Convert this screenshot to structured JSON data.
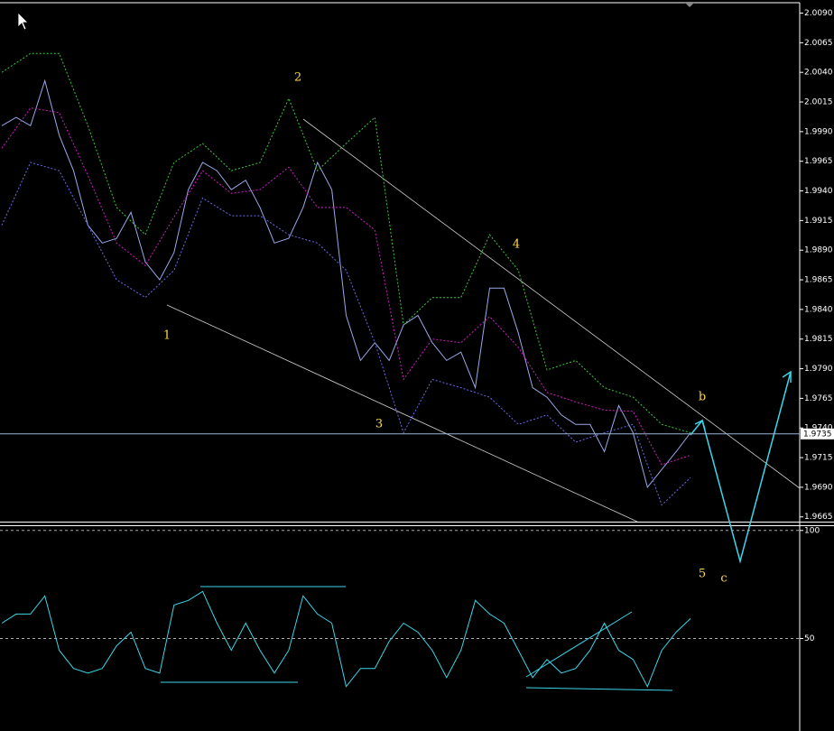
{
  "chart_data": [
    {
      "type": "line",
      "ylim": [
        1.9661,
        2.0098
      ],
      "yticks": [
        {
          "value": 2.009,
          "label": "2.0090"
        },
        2.0065,
        {
          "value": 2.004,
          "label": "2.0040"
        },
        2.0015,
        {
          "value": 1.999,
          "label": "1.9990"
        },
        1.9965,
        {
          "value": 1.994,
          "label": "1.9940"
        },
        1.9915,
        {
          "value": 1.989,
          "label": "1.9890"
        },
        1.9865,
        {
          "value": 1.984,
          "label": "1.9840"
        },
        1.9815,
        {
          "value": 1.979,
          "label": "1.9790"
        },
        1.9765,
        {
          "value": 1.974,
          "label": "1.9740"
        },
        1.9715,
        {
          "value": 1.969,
          "label": "1.9690"
        },
        1.9665
      ],
      "grid": false,
      "current_price": 1.9735,
      "annotations": [
        "1",
        "2",
        "3",
        "4",
        "5",
        "b",
        "c"
      ],
      "series": [
        {
          "color": "#9aa8e8",
          "values": [
            1.9995,
            2.0002,
            1.9995,
            2.0033,
            1.9987,
            1.9957,
            1.9911,
            1.9896,
            1.99,
            1.9922,
            1.988,
            1.9865,
            1.9888,
            1.9941,
            1.9964,
            1.9957,
            1.9941,
            1.9949,
            1.9926,
            1.9896,
            1.99,
            1.9926,
            1.9964,
            1.9941,
            1.9835,
            1.9797,
            1.9812,
            1.9797,
            1.9827,
            1.9835,
            1.9812,
            1.9797,
            1.9804,
            1.9774,
            1.9858,
            1.9858,
            1.982,
            1.9774,
            1.9766,
            1.9751,
            1.9743,
            1.9743,
            1.972,
            1.9759,
            1.9736,
            1.969,
            1.9705,
            1.972,
            1.9736
          ]
        },
        {
          "color": "#3cc83c",
          "dashed": true,
          "values": [
            2.004,
            2.0056,
            2.0056,
            1.9995,
            1.9926,
            1.9903,
            1.9964,
            1.998,
            1.9957,
            1.9964,
            2.0018,
            1.9957,
            1.998,
            2.0002,
            1.9827,
            1.985,
            1.985,
            1.9903,
            1.9873,
            1.9789,
            1.9797,
            1.9774,
            1.9766,
            1.9743,
            1.9736
          ]
        },
        {
          "color": "#d01cc8",
          "dashed": true,
          "values": [
            1.9976,
            2.001,
            2.0006,
            1.9953,
            1.9896,
            1.9877,
            1.9918,
            1.9957,
            1.9938,
            1.9941,
            1.996,
            1.9926,
            1.9926,
            1.9907,
            1.9781,
            1.9815,
            1.9812,
            1.9834,
            1.9808,
            1.977,
            1.9762,
            1.9755,
            1.9754,
            1.9709,
            1.9717
          ]
        },
        {
          "color": "#6a6ae8",
          "dashed": true,
          "values": [
            1.9911,
            1.9964,
            1.9957,
            1.9911,
            1.9865,
            1.985,
            1.9873,
            1.9934,
            1.9919,
            1.9919,
            1.9903,
            1.9896,
            1.9873,
            1.9812,
            1.9736,
            1.9781,
            1.9774,
            1.9766,
            1.9743,
            1.9751,
            1.9728,
            1.9736,
            1.9743,
            1.9675,
            1.9698
          ]
        }
      ]
    },
    {
      "type": "line",
      "ylim": [
        8,
        102
      ],
      "yticks": [
        100,
        50
      ],
      "grid": true,
      "series": [
        {
          "color": "#3ad7e8",
          "values": [
            57.1,
            61.3,
            61.3,
            69.7,
            44.5,
            36.1,
            34.0,
            36.1,
            46.6,
            52.9,
            36.1,
            34.0,
            65.5,
            67.6,
            71.8,
            57.1,
            44.5,
            57.1,
            44.5,
            34.0,
            44.5,
            69.7,
            61.3,
            57.1,
            27.7,
            36.1,
            36.1,
            48.7,
            57.1,
            52.9,
            44.5,
            31.9,
            44.5,
            67.6,
            61.3,
            57.1,
            44.5,
            31.9,
            40.3,
            34.0,
            36.1,
            44.5,
            57.1,
            44.5,
            40.3,
            27.7,
            44.5,
            52.9,
            59.2
          ]
        }
      ]
    }
  ]
}
